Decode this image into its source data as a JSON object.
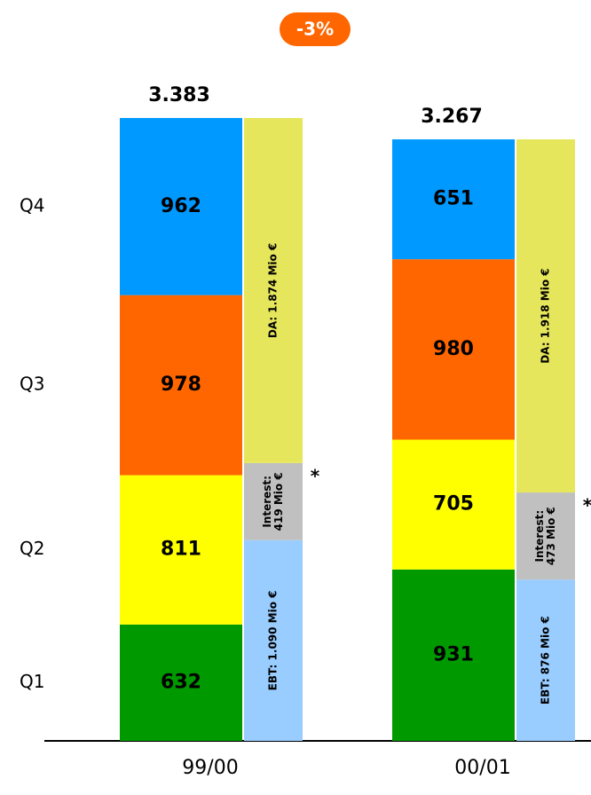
{
  "chart_data": {
    "type": "bar",
    "stacked": true,
    "badge": "-3%",
    "categories": [
      "99/00",
      "00/01"
    ],
    "totals": [
      {
        "value": 3383,
        "label": "3.383"
      },
      {
        "value": 3267,
        "label": "3.267"
      }
    ],
    "series": [
      {
        "name": "Q1",
        "color": "#009900",
        "values": [
          632,
          931
        ]
      },
      {
        "name": "Q2",
        "color": "#ffff00",
        "values": [
          811,
          705
        ]
      },
      {
        "name": "Q3",
        "color": "#ff6600",
        "values": [
          978,
          980
        ]
      },
      {
        "name": "Q4",
        "color": "#0099ff",
        "values": [
          962,
          651
        ]
      }
    ],
    "breakdown": [
      {
        "color": "#99ccff",
        "values": [
          1090,
          876
        ],
        "value_labels": [
          [
            "EBT: 1.090 Mio €"
          ],
          [
            "EBT: 876 Mio €"
          ]
        ]
      },
      {
        "color": "#c0c0c0",
        "values": [
          419,
          473
        ],
        "value_labels": [
          [
            "Interest:",
            "419 Mio €"
          ],
          [
            "Interest:",
            "473 Mio €"
          ]
        ],
        "note": "*"
      },
      {
        "color": "#e6e65c",
        "values": [
          1874,
          1918
        ],
        "value_labels": [
          [
            "DA: 1.874 Mio €"
          ],
          [
            "DA: 1.918 Mio €"
          ]
        ]
      }
    ]
  }
}
